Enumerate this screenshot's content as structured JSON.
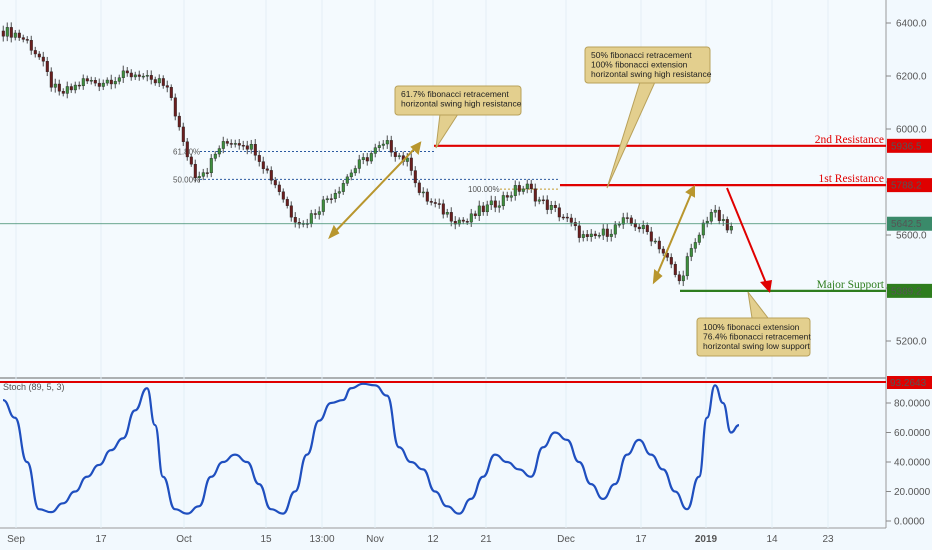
{
  "chart_data": {
    "type": "candlestick",
    "price_axis": {
      "ylim": [
        5050,
        6500
      ],
      "ticks": [
        "6400.0",
        "6200.0",
        "6000.0",
        "5800.0",
        "5600.0",
        "5400.0",
        "5200.0"
      ],
      "tick_values": [
        6400,
        6200,
        6000,
        5800,
        5600,
        5400,
        5200
      ]
    },
    "x_axis": {
      "labels": [
        "Sep",
        "17",
        "Oct",
        "15",
        "13:00",
        "Nov",
        "12",
        "21",
        "Dec",
        "17",
        "2019",
        "14",
        "23"
      ]
    },
    "price_path": [
      [
        0,
        6370
      ],
      [
        3,
        6360
      ],
      [
        6,
        6330
      ],
      [
        9,
        6270
      ],
      [
        12,
        6170
      ],
      [
        14,
        6130
      ],
      [
        17,
        6150
      ],
      [
        20,
        6180
      ],
      [
        24,
        6175
      ],
      [
        27,
        6190
      ],
      [
        30,
        6200
      ],
      [
        34,
        6210
      ],
      [
        37,
        6170
      ],
      [
        39,
        6180
      ],
      [
        42,
        6120
      ],
      [
        45,
        5940
      ],
      [
        48,
        5830
      ],
      [
        51,
        5850
      ],
      [
        54,
        5930
      ],
      [
        57,
        5955
      ],
      [
        60,
        5950
      ],
      [
        63,
        5920
      ],
      [
        66,
        5840
      ],
      [
        69,
        5770
      ],
      [
        72,
        5680
      ],
      [
        75,
        5640
      ],
      [
        78,
        5690
      ],
      [
        81,
        5740
      ],
      [
        84,
        5780
      ],
      [
        87,
        5840
      ],
      [
        90,
        5880
      ],
      [
        93,
        5920
      ],
      [
        96,
        5940
      ],
      [
        99,
        5900
      ],
      [
        102,
        5860
      ],
      [
        104,
        5760
      ],
      [
        107,
        5720
      ],
      [
        110,
        5690
      ],
      [
        113,
        5660
      ],
      [
        116,
        5650
      ],
      [
        119,
        5690
      ],
      [
        122,
        5710
      ],
      [
        125,
        5740
      ],
      [
        128,
        5770
      ],
      [
        131,
        5780
      ],
      [
        134,
        5730
      ],
      [
        137,
        5700
      ],
      [
        140,
        5670
      ],
      [
        143,
        5620
      ],
      [
        146,
        5580
      ],
      [
        149,
        5600
      ],
      [
        152,
        5620
      ],
      [
        155,
        5650
      ],
      [
        158,
        5640
      ],
      [
        161,
        5610
      ],
      [
        164,
        5560
      ],
      [
        167,
        5480
      ],
      [
        169,
        5420
      ],
      [
        171,
        5510
      ],
      [
        173,
        5560
      ],
      [
        175,
        5640
      ],
      [
        177,
        5690
      ],
      [
        179,
        5660
      ],
      [
        181,
        5620
      ],
      [
        183,
        5630
      ]
    ],
    "levels": [
      {
        "name": "2nd Resistance",
        "value": 5936.5,
        "label": "5936.5",
        "color": "#e00000"
      },
      {
        "name": "1st Resistance",
        "value": 5788.2,
        "label": "5788.2",
        "color": "#e00000"
      },
      {
        "name": "Major Support",
        "value": 5389.2,
        "label": "5389.2",
        "color": "#2e7d1e"
      },
      {
        "name": "",
        "value": 5642.5,
        "label": "5642.5",
        "color": "#3a8a6a"
      }
    ],
    "fib_levels": [
      {
        "label": "61.80%",
        "value": 5915
      },
      {
        "label": "50.00%",
        "value": 5810
      },
      {
        "label": "100.00%",
        "value": 5785
      }
    ],
    "annotations": [
      {
        "lines": [
          "61.7% fibonacci retracement",
          "horizontal swing high resistance"
        ]
      },
      {
        "lines": [
          "50% fibonacci retracement",
          "100% fibonacci extension",
          "horizontal swing high resistance"
        ]
      },
      {
        "lines": [
          "100% fibonacci extension",
          "76.4% fibonacci retracement",
          "horizontal swing low support"
        ]
      }
    ],
    "indicator": {
      "name": "Stoch (89, 5, 3)",
      "ylim": [
        0,
        100
      ],
      "ticks": [
        "80.0000",
        "60.0000",
        "40.0000",
        "20.0000",
        "0.0000"
      ],
      "tick_values": [
        80,
        60,
        40,
        20,
        0
      ],
      "level": {
        "value": 93.2643,
        "label": "93.2643"
      },
      "path": [
        [
          0,
          82
        ],
        [
          3,
          70
        ],
        [
          6,
          40
        ],
        [
          9,
          8
        ],
        [
          12,
          6
        ],
        [
          15,
          12
        ],
        [
          18,
          20
        ],
        [
          21,
          30
        ],
        [
          24,
          38
        ],
        [
          27,
          48
        ],
        [
          30,
          56
        ],
        [
          33,
          75
        ],
        [
          36,
          90
        ],
        [
          38,
          65
        ],
        [
          40,
          30
        ],
        [
          43,
          8
        ],
        [
          46,
          5
        ],
        [
          49,
          10
        ],
        [
          52,
          30
        ],
        [
          55,
          40
        ],
        [
          58,
          45
        ],
        [
          61,
          40
        ],
        [
          64,
          25
        ],
        [
          67,
          8
        ],
        [
          70,
          5
        ],
        [
          73,
          20
        ],
        [
          76,
          45
        ],
        [
          79,
          68
        ],
        [
          82,
          80
        ],
        [
          85,
          82
        ],
        [
          87,
          90
        ],
        [
          90,
          93
        ],
        [
          93,
          92
        ],
        [
          96,
          85
        ],
        [
          99,
          50
        ],
        [
          102,
          40
        ],
        [
          105,
          35
        ],
        [
          108,
          20
        ],
        [
          111,
          10
        ],
        [
          114,
          5
        ],
        [
          117,
          15
        ],
        [
          120,
          30
        ],
        [
          123,
          45
        ],
        [
          126,
          40
        ],
        [
          129,
          35
        ],
        [
          132,
          30
        ],
        [
          135,
          50
        ],
        [
          138,
          60
        ],
        [
          141,
          55
        ],
        [
          144,
          40
        ],
        [
          147,
          25
        ],
        [
          150,
          15
        ],
        [
          153,
          25
        ],
        [
          156,
          45
        ],
        [
          159,
          55
        ],
        [
          162,
          45
        ],
        [
          165,
          35
        ],
        [
          168,
          20
        ],
        [
          171,
          8
        ],
        [
          174,
          30
        ],
        [
          176,
          70
        ],
        [
          178,
          92
        ],
        [
          180,
          80
        ],
        [
          182,
          60
        ],
        [
          184,
          65
        ]
      ]
    }
  }
}
